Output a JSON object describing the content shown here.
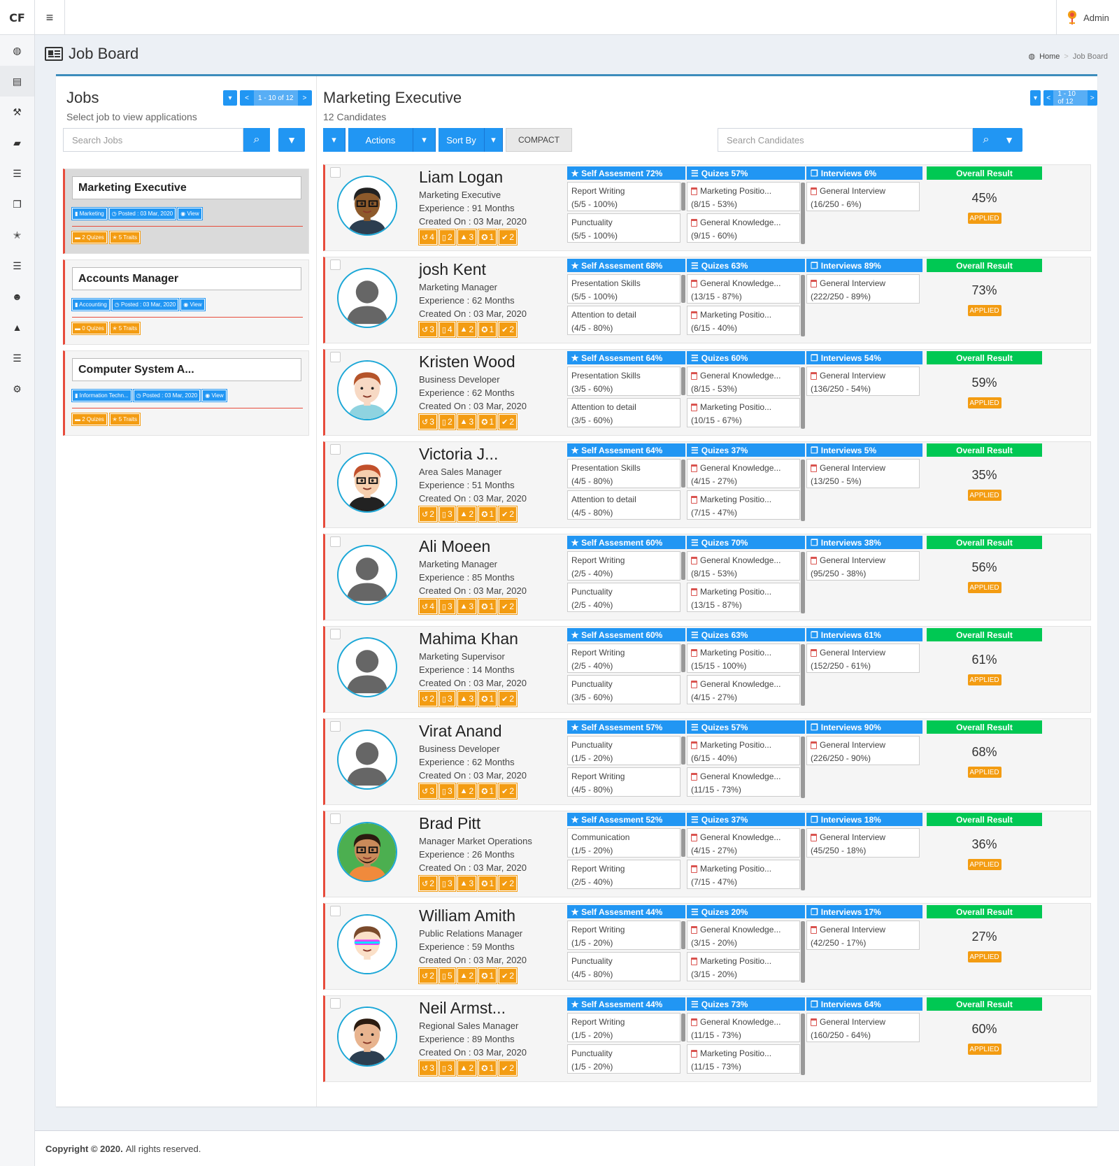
{
  "app": {
    "logo": "CF",
    "menu_icon": "≡",
    "user": "Admin"
  },
  "sidebar_icons": [
    "dashboard-icon",
    "newspaper-icon",
    "gavel-icon",
    "briefcase-icon",
    "list-icon",
    "copy-icon",
    "star-half-icon",
    "list-icon",
    "users-icon",
    "graduation-cap-icon",
    "list-icon",
    "cogs-icon"
  ],
  "page": {
    "title": "Job Board",
    "breadcrumb": {
      "home": "Home",
      "current": "Job Board"
    }
  },
  "jobs": {
    "title": "Jobs",
    "subtitle": "Select job to view applications",
    "pager": "1 - 10 of 12",
    "search_placeholder": "Search Jobs",
    "items": [
      {
        "name": "Marketing Executive",
        "tags": [
          "Marketing",
          "Posted : 03 Mar, 2020",
          "View"
        ],
        "badges": [
          "2 Quizes",
          "5 Traits"
        ]
      },
      {
        "name": "Accounts Manager",
        "tags": [
          "Accounting",
          "Posted : 03 Mar, 2020",
          "View"
        ],
        "badges": [
          "0 Quizes",
          "5 Traits"
        ]
      },
      {
        "name": "Computer System A...",
        "tags": [
          "Information Techn...",
          "Posted : 03 Mar, 2020",
          "View"
        ],
        "badges": [
          "2 Quizes",
          "5 Traits"
        ]
      }
    ]
  },
  "candidates": {
    "title": "Marketing Executive",
    "count": "12 Candidates",
    "pager": "1 - 10 of 12",
    "actions_label": "Actions",
    "sort_label": "Sort By",
    "compact_label": "COMPACT",
    "search_placeholder": "Search Candidates",
    "overall_label": "Overall Result",
    "applied_label": "APPLIED",
    "list": [
      {
        "name": "Liam Logan",
        "role": "Marketing Executive",
        "experience": "Experience : 91 Months",
        "created": "Created On : 03 Mar, 2020",
        "badges": [
          "4",
          "2",
          "3",
          "1",
          "2"
        ],
        "avatar": "dark",
        "self": "Self Assesment 72%",
        "self_items": [
          [
            "Report Writing",
            "(5/5 - 100%)"
          ],
          [
            "Punctuality",
            "(5/5 - 100%)"
          ]
        ],
        "quiz": "Quizes 57%",
        "quiz_items": [
          [
            "Marketing Positio...",
            "(8/15 - 53%)"
          ],
          [
            "General Knowledge...",
            "(9/15 - 60%)"
          ]
        ],
        "interview": "Interviews 6%",
        "interview_item": [
          "General Interview",
          "(16/250 - 6%)"
        ],
        "overall": "45%"
      },
      {
        "name": "josh Kent",
        "role": "Marketing Manager",
        "experience": "Experience : 62 Months",
        "created": "Created On : 03 Mar, 2020",
        "badges": [
          "3",
          "4",
          "2",
          "1",
          "2"
        ],
        "avatar": "default",
        "self": "Self Assesment 68%",
        "self_items": [
          [
            "Presentation Skills",
            "(5/5 - 100%)"
          ],
          [
            "Attention to detail",
            "(4/5 - 80%)"
          ]
        ],
        "quiz": "Quizes 63%",
        "quiz_items": [
          [
            "General Knowledge...",
            "(13/15 - 87%)"
          ],
          [
            "Marketing Positio...",
            "(6/15 - 40%)"
          ]
        ],
        "interview": "Interviews 89%",
        "interview_item": [
          "General Interview",
          "(222/250 - 89%)"
        ],
        "overall": "73%"
      },
      {
        "name": "Kristen Wood",
        "role": "Business Developer",
        "experience": "Experience : 62 Months",
        "created": "Created On : 03 Mar, 2020",
        "badges": [
          "3",
          "2",
          "3",
          "1",
          "2"
        ],
        "avatar": "redhair",
        "self": "Self Assesment 64%",
        "self_items": [
          [
            "Presentation Skills",
            "(3/5 - 60%)"
          ],
          [
            "Attention to detail",
            "(3/5 - 60%)"
          ]
        ],
        "quiz": "Quizes 60%",
        "quiz_items": [
          [
            "General Knowledge...",
            "(8/15 - 53%)"
          ],
          [
            "Marketing Positio...",
            "(10/15 - 67%)"
          ]
        ],
        "interview": "Interviews 54%",
        "interview_item": [
          "General Interview",
          "(136/250 - 54%)"
        ],
        "overall": "59%"
      },
      {
        "name": "Victoria J...",
        "role": "Area Sales Manager",
        "experience": "Experience : 51 Months",
        "created": "Created On : 03 Mar, 2020",
        "badges": [
          "2",
          "3",
          "2",
          "1",
          "2"
        ],
        "avatar": "woman",
        "self": "Self Assesment 64%",
        "self_items": [
          [
            "Presentation Skills",
            "(4/5 - 80%)"
          ],
          [
            "Attention to detail",
            "(4/5 - 80%)"
          ]
        ],
        "quiz": "Quizes 37%",
        "quiz_items": [
          [
            "General Knowledge...",
            "(4/15 - 27%)"
          ],
          [
            "Marketing Positio...",
            "(7/15 - 47%)"
          ]
        ],
        "interview": "Interviews 5%",
        "interview_item": [
          "General Interview",
          "(13/250 - 5%)"
        ],
        "overall": "35%"
      },
      {
        "name": "Ali Moeen",
        "role": "Marketing Manager",
        "experience": "Experience : 85 Months",
        "created": "Created On : 03 Mar, 2020",
        "badges": [
          "4",
          "3",
          "3",
          "1",
          "2"
        ],
        "avatar": "default",
        "self": "Self Assesment 60%",
        "self_items": [
          [
            "Report Writing",
            "(2/5 - 40%)"
          ],
          [
            "Punctuality",
            "(2/5 - 40%)"
          ]
        ],
        "quiz": "Quizes 70%",
        "quiz_items": [
          [
            "General Knowledge...",
            "(8/15 - 53%)"
          ],
          [
            "Marketing Positio...",
            "(13/15 - 87%)"
          ]
        ],
        "interview": "Interviews 38%",
        "interview_item": [
          "General Interview",
          "(95/250 - 38%)"
        ],
        "overall": "56%"
      },
      {
        "name": "Mahima Khan",
        "role": "Marketing Supervisor",
        "experience": "Experience : 14 Months",
        "created": "Created On : 03 Mar, 2020",
        "badges": [
          "2",
          "3",
          "3",
          "1",
          "2"
        ],
        "avatar": "default",
        "self": "Self Assesment 60%",
        "self_items": [
          [
            "Report Writing",
            "(2/5 - 40%)"
          ],
          [
            "Punctuality",
            "(3/5 - 60%)"
          ]
        ],
        "quiz": "Quizes 63%",
        "quiz_items": [
          [
            "Marketing Positio...",
            "(15/15 - 100%)"
          ],
          [
            "General Knowledge...",
            "(4/15 - 27%)"
          ]
        ],
        "interview": "Interviews 61%",
        "interview_item": [
          "General Interview",
          "(152/250 - 61%)"
        ],
        "overall": "61%"
      },
      {
        "name": "Virat Anand",
        "role": "Business Developer",
        "experience": "Experience : 62 Months",
        "created": "Created On : 03 Mar, 2020",
        "badges": [
          "3",
          "3",
          "2",
          "1",
          "2"
        ],
        "avatar": "default",
        "self": "Self Assesment 57%",
        "self_items": [
          [
            "Punctuality",
            "(1/5 - 20%)"
          ],
          [
            "Report Writing",
            "(4/5 - 80%)"
          ]
        ],
        "quiz": "Quizes 57%",
        "quiz_items": [
          [
            "Marketing Positio...",
            "(6/15 - 40%)"
          ],
          [
            "General Knowledge...",
            "(11/15 - 73%)"
          ]
        ],
        "interview": "Interviews 90%",
        "interview_item": [
          "General Interview",
          "(226/250 - 90%)"
        ],
        "overall": "68%"
      },
      {
        "name": "Brad Pitt",
        "role": "Manager Market Operations",
        "experience": "Experience : 26 Months",
        "created": "Created On : 03 Mar, 2020",
        "badges": [
          "2",
          "3",
          "3",
          "1",
          "2"
        ],
        "avatar": "beard",
        "self": "Self Assesment 52%",
        "self_items": [
          [
            "Communication",
            "(1/5 - 20%)"
          ],
          [
            "Report Writing",
            "(2/5 - 40%)"
          ]
        ],
        "quiz": "Quizes 37%",
        "quiz_items": [
          [
            "General Knowledge...",
            "(4/15 - 27%)"
          ],
          [
            "Marketing Positio...",
            "(7/15 - 47%)"
          ]
        ],
        "interview": "Interviews 18%",
        "interview_item": [
          "General Interview",
          "(45/250 - 18%)"
        ],
        "overall": "36%"
      },
      {
        "name": "William Amith",
        "role": "Public Relations Manager",
        "experience": "Experience : 59 Months",
        "created": "Created On : 03 Mar, 2020",
        "badges": [
          "2",
          "5",
          "2",
          "1",
          "2"
        ],
        "avatar": "glasses",
        "self": "Self Assesment 44%",
        "self_items": [
          [
            "Report Writing",
            "(1/5 - 20%)"
          ],
          [
            "Punctuality",
            "(4/5 - 80%)"
          ]
        ],
        "quiz": "Quizes 20%",
        "quiz_items": [
          [
            "General Knowledge...",
            "(3/15 - 20%)"
          ],
          [
            "Marketing Positio...",
            "(3/15 - 20%)"
          ]
        ],
        "interview": "Interviews 17%",
        "interview_item": [
          "General Interview",
          "(42/250 - 17%)"
        ],
        "overall": "27%"
      },
      {
        "name": "Neil Armst...",
        "role": "Regional Sales Manager",
        "experience": "Experience : 89 Months",
        "created": "Created On : 03 Mar, 2020",
        "badges": [
          "3",
          "3",
          "2",
          "1",
          "2"
        ],
        "avatar": "suit",
        "self": "Self Assesment 44%",
        "self_items": [
          [
            "Report Writing",
            "(1/5 - 20%)"
          ],
          [
            "Punctuality",
            "(1/5 - 20%)"
          ]
        ],
        "quiz": "Quizes 73%",
        "quiz_items": [
          [
            "General Knowledge...",
            "(11/15 - 73%)"
          ],
          [
            "Marketing Positio...",
            "(11/15 - 73%)"
          ]
        ],
        "interview": "Interviews 64%",
        "interview_item": [
          "General Interview",
          "(160/250 - 64%)"
        ],
        "overall": "60%"
      }
    ]
  },
  "footer": {
    "copyright": "Copyright © 2020.",
    "rights": "All rights reserved."
  },
  "colors": {
    "primary": "#2196f3",
    "success": "#00c853",
    "warning": "#f39c12",
    "danger": "#e74c3c"
  }
}
